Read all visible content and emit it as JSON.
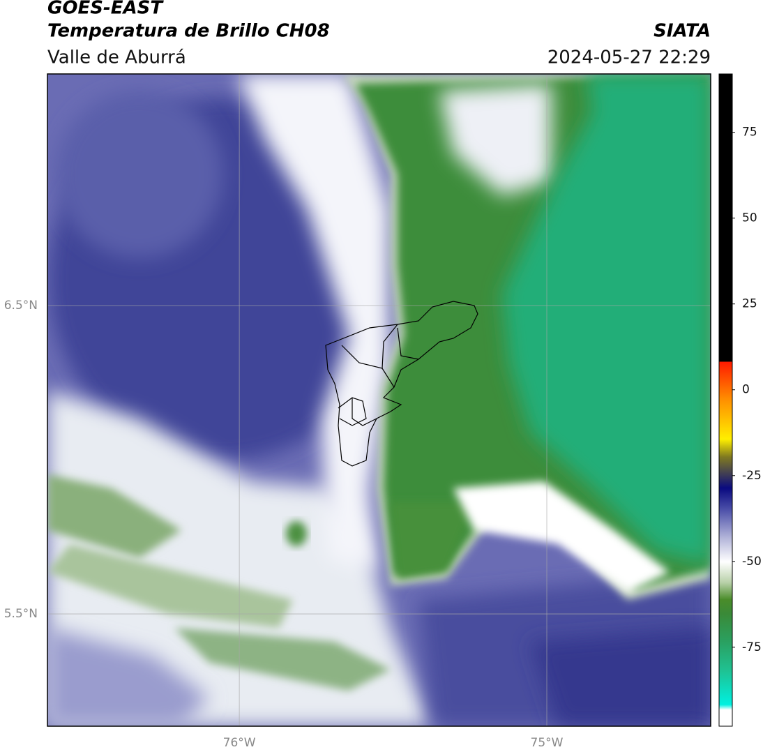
{
  "header": {
    "title": "GOES-EAST",
    "subtitle": "Temperatura de Brillo CH08",
    "region": "Valle de Aburrá",
    "source": "SIATA",
    "datetime": "2024-05-27 22:29"
  },
  "map": {
    "lon_range": [
      -76.624,
      -74.467
    ],
    "lat_range": [
      5.136,
      7.251
    ],
    "lon_ticks": [
      {
        "value": -76,
        "label": "76°W"
      },
      {
        "value": -75,
        "label": "75°W"
      }
    ],
    "lat_ticks": [
      {
        "value": 6.5,
        "label": "6.5°N"
      },
      {
        "value": 5.5,
        "label": "5.5°N"
      }
    ]
  },
  "colorbar": {
    "range": [
      -98,
      92
    ],
    "ticks": [
      75,
      50,
      25,
      0,
      -25,
      -50,
      -75
    ]
  }
}
